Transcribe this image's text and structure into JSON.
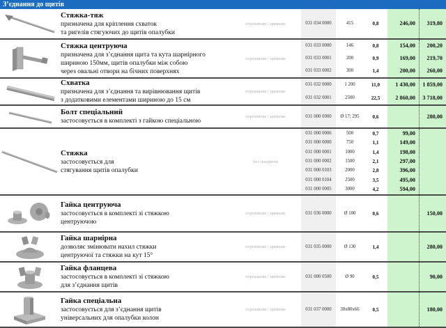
{
  "header": {
    "title": "З’єднання до щитів"
  },
  "colors": {
    "header_bg": "#1b6cc0",
    "price_bg": "#cdf4cd",
    "article_bg": "#f0f0f0"
  },
  "products": [
    {
      "name": "Стяжка-тяж",
      "icon": "tie-rod-icon",
      "description": [
        "призначена для кріплення схваток",
        "та ригелів стягуючих до щитів опалубки"
      ],
      "coating": "порошкове / цинкове",
      "variants": [
        {
          "article": "031 034 0000",
          "size": "415",
          "weight": "0,8",
          "price1": "246,00",
          "price2": "319,80"
        }
      ]
    },
    {
      "name": "Стяжка центруюча",
      "icon": "centering-tie-icon",
      "description": [
        "призначена для з’єднання щита та кута шарнірного",
        "шириною 150мм, щитів опалубки між собою",
        "через овальні отвори на бічних поверхнях"
      ],
      "coating": "порошкове / цинкове",
      "variants": [
        {
          "article": "031 033 0000",
          "size": "146",
          "weight": "0,8",
          "price1": "154,00",
          "price2": "200,20"
        },
        {
          "article": "031 033 0001",
          "size": "200",
          "weight": "0,9",
          "price1": "169,00",
          "price2": "219,70"
        },
        {
          "article": "031 033 0002",
          "size": "300",
          "weight": "1,4",
          "price1": "200,00",
          "price2": "260,00"
        }
      ]
    },
    {
      "name": "Схватка",
      "icon": "waler-bar-icon",
      "description": [
        "призначена для з’єднання та вирівнювання щитів",
        "з додатковими елементами шириною до 15 см"
      ],
      "coating": "порошкове / цинкове",
      "variants": [
        {
          "article": "031 032 0000",
          "size": "1 200",
          "weight": "11,0",
          "price1": "1 430,00",
          "price2": "1 859,00"
        },
        {
          "article": "031 032 0001",
          "size": "2500",
          "weight": "22,5",
          "price1": "2 860,00",
          "price2": "3 718,00"
        }
      ]
    },
    {
      "name": "Болт спеціальний",
      "icon": "special-bolt-icon",
      "description": [
        "застосовується в комплекті з гайкою спеціальною"
      ],
      "coating": "порошкове / цинкове",
      "variants": [
        {
          "article": "031 000 0900",
          "size": "Ø 17; 295",
          "weight": "0,6",
          "price1": "",
          "price2": "280,00"
        }
      ]
    },
    {
      "name": "Стяжка",
      "icon": "tie-bar-icon",
      "description": [
        "застосовується для",
        "стягування щитів опалубки"
      ],
      "coating": "без покриття",
      "variants": [
        {
          "article": "031 000 0006",
          "size": "500",
          "weight": "0,7",
          "price1": "99,00",
          "price2": ""
        },
        {
          "article": "031 000 0000",
          "size": "750",
          "weight": "1,1",
          "price1": "149,00",
          "price2": ""
        },
        {
          "article": "031 000 0001",
          "size": "1000",
          "weight": "1,4",
          "price1": "198,00",
          "price2": ""
        },
        {
          "article": "031 000 0002",
          "size": "1500",
          "weight": "2,1",
          "price1": "297,00",
          "price2": ""
        },
        {
          "article": "031 000 0103",
          "size": "2000",
          "weight": "2,8",
          "price1": "396,00",
          "price2": ""
        },
        {
          "article": "031 000 0104",
          "size": "2500",
          "weight": "3,5",
          "price1": "495,00",
          "price2": ""
        },
        {
          "article": "031 000 0005",
          "size": "3000",
          "weight": "4,2",
          "price1": "594,00",
          "price2": ""
        }
      ]
    },
    {
      "name": "Гайка центруюча",
      "icon": "centering-nut-icon",
      "description": [
        "застосовується в комплекті зі стяжкою",
        "центруючою"
      ],
      "coating": "порошкове / цинкове",
      "variants": [
        {
          "article": "031 036 0000",
          "size": "Ø 100",
          "weight": "0,6",
          "price1": "",
          "price2": "150,00"
        }
      ]
    },
    {
      "name": "Гайка шарнірна",
      "icon": "hinged-nut-icon",
      "description": [
        "дозволяє змінювати нахил стяжки",
        "центруючої та стяжки на кут 15°"
      ],
      "coating": "порошкове / цинкове",
      "variants": [
        {
          "article": "031 035 0000",
          "size": "Ø 130",
          "weight": "1,4",
          "price1": "",
          "price2": "280,00"
        }
      ]
    },
    {
      "name": "Гайка фланцева",
      "icon": "flange-nut-icon",
      "description": [
        "застосовується в комплекті зі стяжкою",
        "для з’єднання щитів"
      ],
      "coating": "порошкове / цинкове",
      "variants": [
        {
          "article": "031 000 0500",
          "size": "Ø 90",
          "weight": "0,5",
          "price1": "",
          "price2": "90,00"
        }
      ]
    },
    {
      "name": "Гайка спеціальна",
      "icon": "special-nut-icon",
      "description": [
        "застосовується для з’єднання щитів",
        "універсальних для опалубки колон"
      ],
      "coating": "порошкове / цинкове",
      "variants": [
        {
          "article": "031 037 0000",
          "size": "30х80х66",
          "weight": "0,5",
          "price1": "",
          "price2": "180,00"
        }
      ]
    }
  ]
}
